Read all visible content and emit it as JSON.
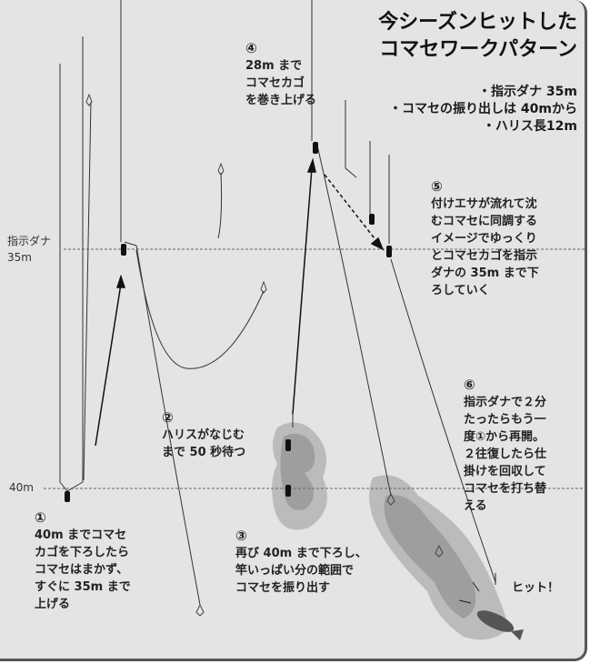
{
  "title": [
    "今シーズンヒットした",
    "コマセワークパターン"
  ],
  "conditions": [
    "・指示ダナ 35m",
    "・コマセの振り出しは 40mから",
    "・ハリス長12m"
  ],
  "depth_labels": {
    "tana_label": "指示ダナ",
    "tana_depth": "35m",
    "bottom_depth": "40m"
  },
  "steps": [
    {
      "num": "①",
      "lines": [
        "40m までコマセ",
        "カゴを下ろしたら",
        "コマセはまかず、",
        "すぐに 35m まで",
        "上げる"
      ]
    },
    {
      "num": "②",
      "lines": [
        "ハリスがなじむ",
        "まで 50 秒待つ"
      ]
    },
    {
      "num": "③",
      "lines": [
        "再び 40m まで下ろし、",
        "竿いっぱい分の範囲で",
        "コマセを振り出す"
      ]
    },
    {
      "num": "④",
      "lines": [
        "28m まで",
        "コマセカゴ",
        "を巻き上げる"
      ]
    },
    {
      "num": "⑤",
      "lines": [
        "付けエサが流れて沈",
        "むコマセに同調する",
        "イメージでゆっくり",
        "とコマセカゴを指示",
        "ダナの 35m まで下",
        "ろしていく"
      ]
    },
    {
      "num": "⑥",
      "lines": [
        "指示ダナで２分",
        "たったらもう一",
        "度①から再開。",
        "２往復したら仕",
        "掛けを回収して",
        "コマセを打ち替",
        "える"
      ]
    }
  ],
  "hit_label": "ヒット！"
}
